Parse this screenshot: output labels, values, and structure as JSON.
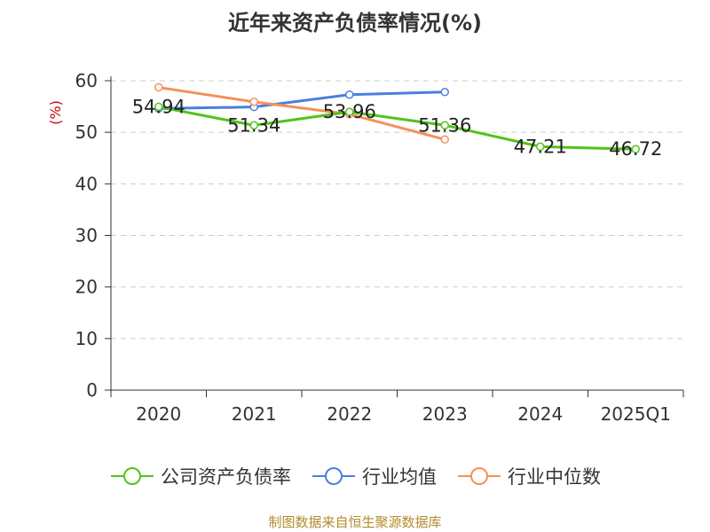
{
  "title": "近年来资产负债率情况(%)",
  "source_note": "制图数据来自恒生聚源数据库",
  "chart_data": {
    "type": "line",
    "title": "近年来资产负债率情况(%)",
    "ylabel": "(%)",
    "xlabel": "",
    "categories": [
      "2020",
      "2021",
      "2022",
      "2023",
      "2024",
      "2025Q1"
    ],
    "ylim": [
      0,
      60
    ],
    "yticks": [
      0,
      10,
      20,
      30,
      40,
      50,
      60
    ],
    "grid": true,
    "legend_position": "bottom",
    "series": [
      {
        "name": "公司资产负债率",
        "color": "#52c41a",
        "values": [
          54.94,
          51.34,
          53.96,
          51.36,
          47.21,
          46.72
        ],
        "labels": [
          "54.94",
          "51.34",
          "53.96",
          "51.36",
          "47.21",
          "46.72"
        ]
      },
      {
        "name": "行业均值",
        "color": "#4a7fdb",
        "values": [
          54.6,
          54.9,
          57.3,
          57.8,
          null,
          null
        ]
      },
      {
        "name": "行业中位数",
        "color": "#f39159",
        "values": [
          58.7,
          55.9,
          53.5,
          48.6,
          null,
          null
        ]
      }
    ]
  }
}
